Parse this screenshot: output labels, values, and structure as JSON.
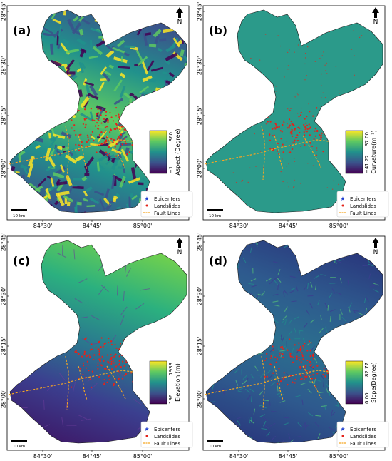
{
  "figure": {
    "panels": [
      {
        "label": "(a)",
        "variable": "Aspect",
        "colorbar_label": "Aspect (Degree)",
        "colorbar_max": "360",
        "colorbar_min": "−1",
        "colormap": [
          "#440154",
          "#3b528b",
          "#21918c",
          "#5ec962",
          "#fde725"
        ],
        "base_color": "#3f9f6a",
        "x_ticks": [
          "84°30'",
          "84°45'",
          "85°00'"
        ],
        "y_ticks": [
          "28°45'",
          "28°30'",
          "28°15'",
          "28°00'"
        ]
      },
      {
        "label": "(b)",
        "variable": "Curvature",
        "colorbar_label": "Curvature(m⁻¹)",
        "colorbar_max": "37.00",
        "colorbar_min": "−41.22",
        "colormap": [
          "#440154",
          "#3b528b",
          "#21918c",
          "#5ec962",
          "#fde725"
        ],
        "base_color": "#2b9a8a",
        "x_ticks": [
          "84°30'",
          "84°45'",
          "85°00'"
        ],
        "y_ticks": [
          "28°45'",
          "28°30'",
          "28°15'",
          "28°00'"
        ]
      },
      {
        "label": "(c)",
        "variable": "Elevation",
        "colorbar_label": "Elevation (m)",
        "colorbar_max": "7933",
        "colorbar_min": "196",
        "colormap": [
          "#440154",
          "#3b528b",
          "#21918c",
          "#5ec962",
          "#fde725"
        ],
        "base_color": "#2a8f8c",
        "x_ticks": [
          "84°30'",
          "84°45'",
          "85°00'"
        ],
        "y_ticks": [
          "28°45'",
          "28°30'",
          "28°15'",
          "28°00'"
        ]
      },
      {
        "label": "(d)",
        "variable": "Slope",
        "colorbar_label": "Slope(Degree)",
        "colorbar_max": "82.77",
        "colorbar_min": "0.00",
        "colormap": [
          "#440154",
          "#3b528b",
          "#21918c",
          "#5ec962",
          "#fde725"
        ],
        "base_color": "#2f5d8c",
        "x_ticks": [
          "84°30'",
          "84°45'",
          "85°00'"
        ],
        "y_ticks": [
          "28°45'",
          "28°30'",
          "28°15'",
          "28°00'"
        ]
      }
    ],
    "north_label": "N",
    "scale_bar_label": "10 km",
    "legend": [
      {
        "label": "Epicenters",
        "symbol": "star",
        "color": "#1f3fd0"
      },
      {
        "label": "Landslides",
        "symbol": "dot",
        "color": "#e4231a"
      },
      {
        "label": "Fault Lines",
        "symbol": "dash",
        "color": "#f5a623"
      }
    ]
  }
}
